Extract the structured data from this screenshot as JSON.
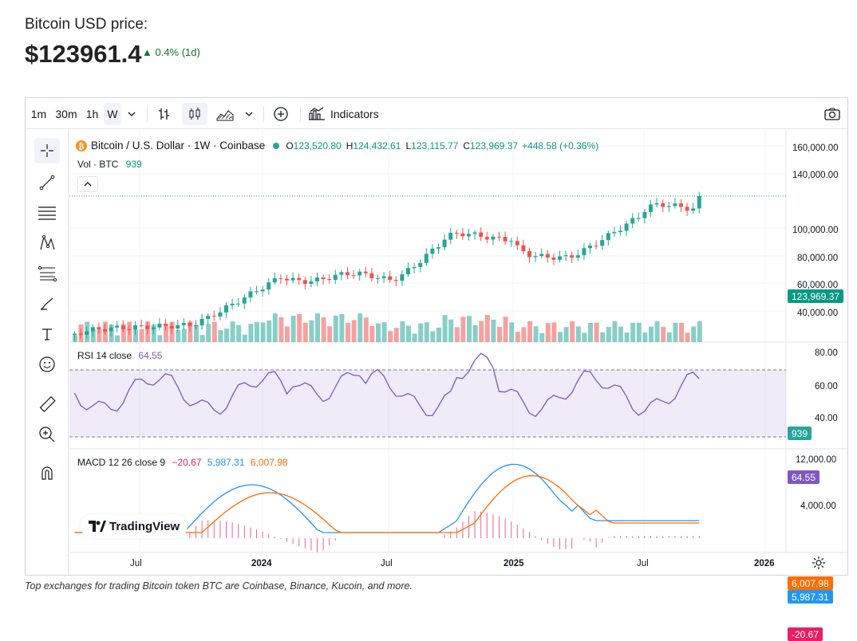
{
  "header": {
    "label": "Bitcoin USD price:",
    "price": "$123961.4",
    "change": "▲ 0.4% (1d)"
  },
  "toolbar": {
    "intervals": [
      "1m",
      "30m",
      "1h",
      "W"
    ],
    "active_interval": "W",
    "indicators_label": "Indicators"
  },
  "legend": {
    "symbol": "Bitcoin / U.S. Dollar · 1W · Coinbase",
    "o_label": "O",
    "o": "123,520.80",
    "h_label": "H",
    "h": "124,432.61",
    "l_label": "L",
    "l": "123,115.77",
    "c_label": "C",
    "c": "123,969.37",
    "change": "+448.58 (+0.36%)",
    "vol_label": "Vol · BTC",
    "vol_value": "939"
  },
  "rsi": {
    "label": "RSI 14 close",
    "value": "64.55"
  },
  "macd": {
    "label": "MACD 12 26 close 9",
    "hist": "−20.67",
    "macd": "5,987.31",
    "signal": "6,007.98"
  },
  "price_axis": [
    "160,000.00",
    "140,000.00",
    "100,000.00",
    "80,000.00",
    "60,000.00",
    "40,000.00"
  ],
  "rsi_axis": [
    "80.00",
    "60.00",
    "40.00"
  ],
  "macd_axis": [
    "12,000.00",
    "4,000.00"
  ],
  "badges": {
    "price": "123,969.37",
    "vol": "939",
    "rsi": "64.55",
    "signal": "6,007.98",
    "macd": "5,987.31",
    "hist": "-20.67"
  },
  "time_axis": [
    "Jul",
    "2024",
    "Jul",
    "2025",
    "Jul",
    "2026"
  ],
  "logo_text": "TradingView",
  "footer": "Top exchanges for trading Bitcoin token BTC are Coinbase, Binance, Kucoin, and more.",
  "colors": {
    "up": "#26a69a",
    "down": "#ef5350",
    "rsi": "#7e57c2",
    "macd": "#2196f3",
    "signal": "#ff6d00",
    "hist_neg": "#e91e63"
  }
}
